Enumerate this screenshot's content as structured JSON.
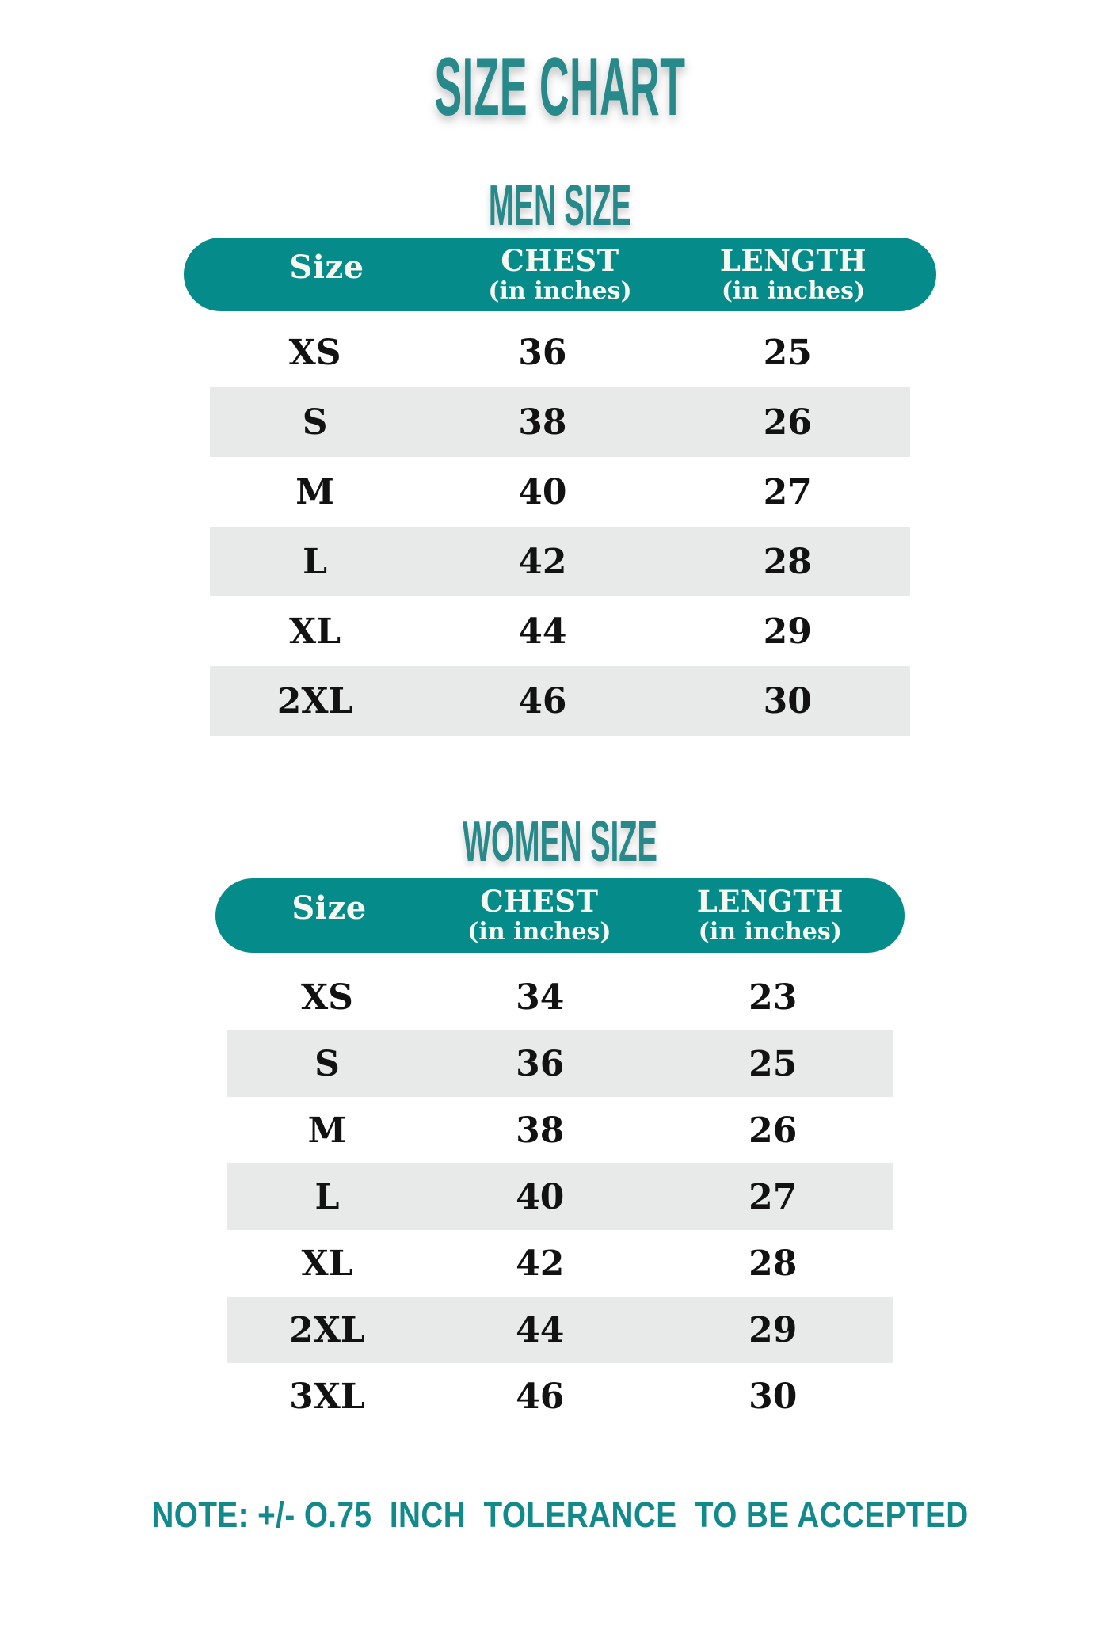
{
  "page": {
    "title": "SIZE CHART",
    "note": "NOTE: +/- O.75  INCH  TOLERANCE  TO BE ACCEPTED"
  },
  "colors": {
    "heading_teal": "#27898a",
    "header_pill_teal": "#048b8a",
    "note_teal": "#12898b",
    "alt_row_gray": "#e7eae8",
    "header_text": "#f6f7ee",
    "body_text": "#121212"
  },
  "men_table": {
    "title": "MEN SIZE",
    "headers": {
      "size": "Size",
      "chest": "CHEST",
      "chest_sub": "(in inches)",
      "length": "LENGTH",
      "length_sub": "(in inches)"
    },
    "rows": [
      [
        "XS",
        "36",
        "25"
      ],
      [
        "S",
        "38",
        "26"
      ],
      [
        "M",
        "40",
        "27"
      ],
      [
        "L",
        "42",
        "28"
      ],
      [
        "XL",
        "44",
        "29"
      ],
      [
        "2XL",
        "46",
        "30"
      ]
    ]
  },
  "women_table": {
    "title": "WOMEN SIZE",
    "headers": {
      "size": "Size",
      "chest": "CHEST",
      "chest_sub": "(in inches)",
      "length": "LENGTH",
      "length_sub": "(in inches)"
    },
    "rows": [
      [
        "XS",
        "34",
        "23"
      ],
      [
        "S",
        "36",
        "25"
      ],
      [
        "M",
        "38",
        "26"
      ],
      [
        "L",
        "40",
        "27"
      ],
      [
        "XL",
        "42",
        "28"
      ],
      [
        "2XL",
        "44",
        "29"
      ],
      [
        "3XL",
        "46",
        "30"
      ]
    ]
  }
}
